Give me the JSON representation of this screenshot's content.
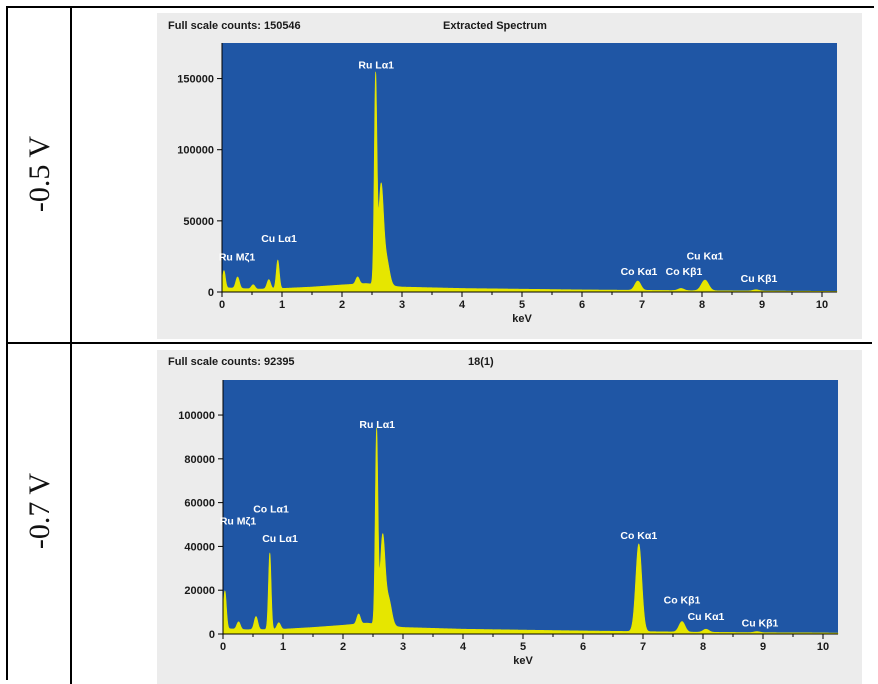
{
  "rows": [
    {
      "voltage_label": "-0.5 V"
    },
    {
      "voltage_label": "-0.7 V"
    }
  ],
  "colors": {
    "plot_background": "#1f56a5",
    "spectrum_fill": "#e6e600",
    "panel_background": "#ececec",
    "peak_label_text": "#ffffff",
    "axis_text": "#1a1a1a"
  },
  "chart_data": [
    {
      "type": "area",
      "title": "Extracted Spectrum",
      "header_counts": "Full scale counts: 150546",
      "xlabel": "keV",
      "ylabel": "",
      "xlim": [
        0,
        10.25
      ],
      "ylim": [
        0,
        175000
      ],
      "x_ticks": [
        "0",
        "1",
        "2",
        "3",
        "4",
        "5",
        "6",
        "7",
        "8",
        "9",
        "10"
      ],
      "y_ticks": [
        {
          "value": 0,
          "label": "0"
        },
        {
          "value": 50000,
          "label": "50000"
        },
        {
          "value": 100000,
          "label": "100000"
        },
        {
          "value": 150000,
          "label": "150000"
        }
      ],
      "baseline": [
        [
          0,
          500
        ],
        [
          0.05,
          3000
        ],
        [
          0.3,
          2500
        ],
        [
          0.6,
          2000
        ],
        [
          1.0,
          2500
        ],
        [
          1.5,
          3500
        ],
        [
          2.0,
          5000
        ],
        [
          2.4,
          6000
        ],
        [
          3.0,
          3500
        ],
        [
          4.0,
          2500
        ],
        [
          5.0,
          2000
        ],
        [
          6.0,
          1500
        ],
        [
          7.0,
          1200
        ],
        [
          8.0,
          900
        ],
        [
          9.0,
          700
        ],
        [
          10.0,
          500
        ],
        [
          10.25,
          400
        ]
      ],
      "peaks": [
        {
          "center": 0.03,
          "height": 13000,
          "width": 0.025
        },
        {
          "center": 0.26,
          "height": 8000,
          "width": 0.03
        },
        {
          "center": 0.52,
          "height": 3000,
          "width": 0.03
        },
        {
          "center": 0.78,
          "height": 6500,
          "width": 0.03
        },
        {
          "center": 0.93,
          "height": 20000,
          "width": 0.025
        },
        {
          "center": 2.26,
          "height": 5000,
          "width": 0.03
        },
        {
          "center": 2.56,
          "height": 144000,
          "width": 0.022
        },
        {
          "center": 2.65,
          "height": 68000,
          "width": 0.04
        },
        {
          "center": 2.74,
          "height": 18000,
          "width": 0.05
        },
        {
          "center": 6.93,
          "height": 6500,
          "width": 0.05
        },
        {
          "center": 7.65,
          "height": 1500,
          "width": 0.05
        },
        {
          "center": 8.05,
          "height": 7500,
          "width": 0.06
        },
        {
          "center": 8.9,
          "height": 900,
          "width": 0.05
        }
      ],
      "annotations": [
        {
          "label": "Ru Mζ1",
          "x": 0.25,
          "y": 22000
        },
        {
          "label": "Cu Lα1",
          "x": 0.95,
          "y": 35000
        },
        {
          "label": "Ru Lα1",
          "x": 2.57,
          "y": 157000
        },
        {
          "label": "Co Kα1",
          "x": 6.95,
          "y": 12000
        },
        {
          "label": "Co Kβ1",
          "x": 7.7,
          "y": 12000
        },
        {
          "label": "Cu Kα1",
          "x": 8.05,
          "y": 23000
        },
        {
          "label": "Cu Kβ1",
          "x": 8.95,
          "y": 7000
        }
      ]
    },
    {
      "type": "area",
      "title": "18(1)",
      "header_counts": "Full scale counts: 92395",
      "xlabel": "keV",
      "ylabel": "",
      "xlim": [
        0,
        10.25
      ],
      "ylim": [
        0,
        116000
      ],
      "x_ticks": [
        "0",
        "1",
        "2",
        "3",
        "4",
        "5",
        "6",
        "7",
        "8",
        "9",
        "10"
      ],
      "y_ticks": [
        {
          "value": 0,
          "label": "0"
        },
        {
          "value": 20000,
          "label": "20000"
        },
        {
          "value": 40000,
          "label": "40000"
        },
        {
          "value": 60000,
          "label": "60000"
        },
        {
          "value": 80000,
          "label": "80000"
        },
        {
          "value": 100000,
          "label": "100000"
        }
      ],
      "baseline": [
        [
          0,
          400
        ],
        [
          0.05,
          2500
        ],
        [
          0.3,
          2000
        ],
        [
          0.6,
          2000
        ],
        [
          1.0,
          2200
        ],
        [
          1.5,
          3000
        ],
        [
          2.0,
          4000
        ],
        [
          2.4,
          5000
        ],
        [
          3.0,
          3000
        ],
        [
          4.0,
          2200
        ],
        [
          5.0,
          1800
        ],
        [
          6.0,
          1400
        ],
        [
          7.0,
          1100
        ],
        [
          8.0,
          800
        ],
        [
          9.0,
          600
        ],
        [
          10.0,
          500
        ],
        [
          10.25,
          400
        ]
      ],
      "peaks": [
        {
          "center": 0.03,
          "height": 18000,
          "width": 0.025
        },
        {
          "center": 0.26,
          "height": 3500,
          "width": 0.03
        },
        {
          "center": 0.55,
          "height": 6000,
          "width": 0.03
        },
        {
          "center": 0.78,
          "height": 35000,
          "width": 0.022
        },
        {
          "center": 0.93,
          "height": 3000,
          "width": 0.03
        },
        {
          "center": 2.26,
          "height": 4500,
          "width": 0.03
        },
        {
          "center": 2.56,
          "height": 88000,
          "width": 0.022
        },
        {
          "center": 2.66,
          "height": 40000,
          "width": 0.04
        },
        {
          "center": 2.76,
          "height": 12000,
          "width": 0.05
        },
        {
          "center": 6.93,
          "height": 40000,
          "width": 0.05
        },
        {
          "center": 7.65,
          "height": 4800,
          "width": 0.05
        },
        {
          "center": 8.05,
          "height": 1400,
          "width": 0.05
        },
        {
          "center": 8.9,
          "height": 500,
          "width": 0.05
        }
      ],
      "annotations": [
        {
          "label": "Ru Mζ1",
          "x": 0.25,
          "y": 50000
        },
        {
          "label": "Co Lα1",
          "x": 0.8,
          "y": 55500
        },
        {
          "label": "Cu Lα1",
          "x": 0.95,
          "y": 42000
        },
        {
          "label": "Ru Lα1",
          "x": 2.57,
          "y": 94000
        },
        {
          "label": "Co Kα1",
          "x": 6.93,
          "y": 43500
        },
        {
          "label": "Co Kβ1",
          "x": 7.65,
          "y": 14000
        },
        {
          "label": "Cu Kα1",
          "x": 8.05,
          "y": 6500
        },
        {
          "label": "Cu Kβ1",
          "x": 8.95,
          "y": 3500
        }
      ]
    }
  ]
}
